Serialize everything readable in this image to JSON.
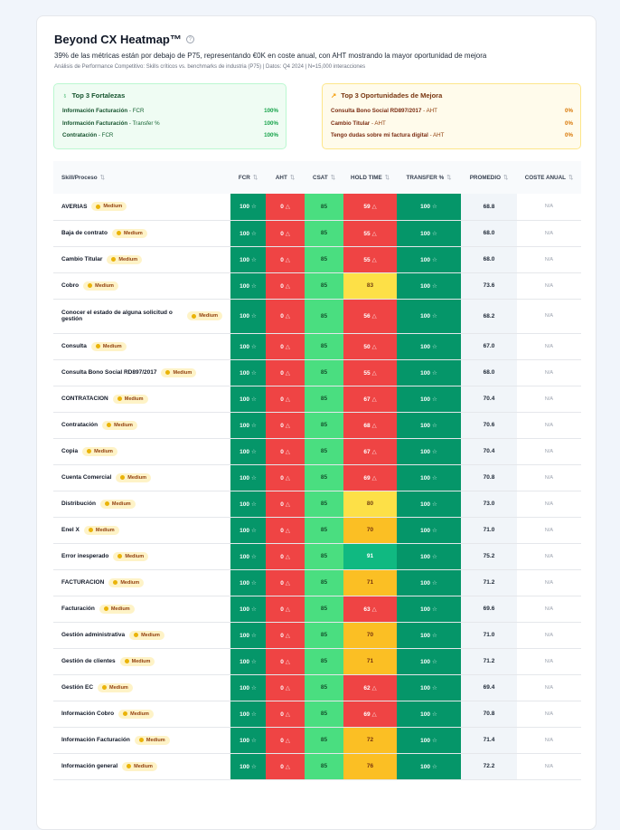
{
  "header": {
    "title": "Beyond CX Heatmap™",
    "help_icon": "question-circle-icon",
    "summary": "39% de las métricas están por debajo de P75, representando €0K en coste anual, con AHT mostrando la mayor oportunidad de mejora",
    "meta": "Análisis de Performance Competitivo: Skills críticos vs. benchmarks de industria (P75) | Datos: Q4 2024 | N=15,000 interacciones"
  },
  "strengths": {
    "title": "Top 3 Fortalezas",
    "icon": "award-icon",
    "items": [
      {
        "skill": "Información Facturación",
        "metric": " - FCR",
        "value": "100%"
      },
      {
        "skill": "Información Facturación",
        "metric": " - Transfer %",
        "value": "100%"
      },
      {
        "skill": "Contratación",
        "metric": " - FCR",
        "value": "100%"
      }
    ]
  },
  "opportunities": {
    "title": "Top 3 Oportunidades de Mejora",
    "icon": "trending-up-icon",
    "items": [
      {
        "skill": "Consulta Bono Social RD897/2017",
        "metric": " - AHT",
        "value": "0%"
      },
      {
        "skill": "Cambio Titular",
        "metric": " - AHT",
        "value": "0%"
      },
      {
        "skill": "Tengo dudas sobre mi factura digital",
        "metric": " - AHT",
        "value": "0%"
      }
    ]
  },
  "table": {
    "columns": [
      "Skill/Proceso",
      "FCR",
      "AHT",
      "CSAT",
      "HOLD TIME",
      "TRANSFER %",
      "PROMEDIO",
      "COSTE ANUAL"
    ],
    "badge": "Medium",
    "na": "N/A",
    "colors": {
      "green_dark": "#059669",
      "red": "#ef4444",
      "green_light": "#4ade80",
      "yellow": "#fde047",
      "amber": "#fbbf24",
      "green": "#10b981"
    },
    "rows": [
      {
        "skill": "AVERIAS",
        "fcr": 100,
        "aht": 0,
        "csat": 85,
        "hold": 59,
        "transfer": 100,
        "avg": "68.8"
      },
      {
        "skill": "Baja de contrato",
        "fcr": 100,
        "aht": 0,
        "csat": 85,
        "hold": 55,
        "transfer": 100,
        "avg": "68.0"
      },
      {
        "skill": "Cambio Titular",
        "fcr": 100,
        "aht": 0,
        "csat": 85,
        "hold": 55,
        "transfer": 100,
        "avg": "68.0"
      },
      {
        "skill": "Cobro",
        "fcr": 100,
        "aht": 0,
        "csat": 85,
        "hold": 83,
        "transfer": 100,
        "avg": "73.6"
      },
      {
        "skill": "Conocer el estado de alguna solicitud o gestión",
        "fcr": 100,
        "aht": 0,
        "csat": 85,
        "hold": 56,
        "transfer": 100,
        "avg": "68.2"
      },
      {
        "skill": "Consulta",
        "fcr": 100,
        "aht": 0,
        "csat": 85,
        "hold": 50,
        "transfer": 100,
        "avg": "67.0"
      },
      {
        "skill": "Consulta Bono Social RD897/2017",
        "fcr": 100,
        "aht": 0,
        "csat": 85,
        "hold": 55,
        "transfer": 100,
        "avg": "68.0"
      },
      {
        "skill": "CONTRATACION",
        "fcr": 100,
        "aht": 0,
        "csat": 85,
        "hold": 67,
        "transfer": 100,
        "avg": "70.4"
      },
      {
        "skill": "Contratación",
        "fcr": 100,
        "aht": 0,
        "csat": 85,
        "hold": 68,
        "transfer": 100,
        "avg": "70.6"
      },
      {
        "skill": "Copia",
        "fcr": 100,
        "aht": 0,
        "csat": 85,
        "hold": 67,
        "transfer": 100,
        "avg": "70.4"
      },
      {
        "skill": "Cuenta Comercial",
        "fcr": 100,
        "aht": 0,
        "csat": 85,
        "hold": 69,
        "transfer": 100,
        "avg": "70.8"
      },
      {
        "skill": "Distribución",
        "fcr": 100,
        "aht": 0,
        "csat": 85,
        "hold": 80,
        "transfer": 100,
        "avg": "73.0"
      },
      {
        "skill": "Enel X",
        "fcr": 100,
        "aht": 0,
        "csat": 85,
        "hold": 70,
        "transfer": 100,
        "avg": "71.0"
      },
      {
        "skill": "Error inesperado",
        "fcr": 100,
        "aht": 0,
        "csat": 85,
        "hold": 91,
        "transfer": 100,
        "avg": "75.2"
      },
      {
        "skill": "FACTURACION",
        "fcr": 100,
        "aht": 0,
        "csat": 85,
        "hold": 71,
        "transfer": 100,
        "avg": "71.2"
      },
      {
        "skill": "Facturación",
        "fcr": 100,
        "aht": 0,
        "csat": 85,
        "hold": 63,
        "transfer": 100,
        "avg": "69.6"
      },
      {
        "skill": "Gestión administrativa",
        "fcr": 100,
        "aht": 0,
        "csat": 85,
        "hold": 70,
        "transfer": 100,
        "avg": "71.0"
      },
      {
        "skill": "Gestión de clientes",
        "fcr": 100,
        "aht": 0,
        "csat": 85,
        "hold": 71,
        "transfer": 100,
        "avg": "71.2"
      },
      {
        "skill": "Gestión EC",
        "fcr": 100,
        "aht": 0,
        "csat": 85,
        "hold": 62,
        "transfer": 100,
        "avg": "69.4"
      },
      {
        "skill": "Información Cobro",
        "fcr": 100,
        "aht": 0,
        "csat": 85,
        "hold": 69,
        "transfer": 100,
        "avg": "70.8"
      },
      {
        "skill": "Información Facturación",
        "fcr": 100,
        "aht": 0,
        "csat": 85,
        "hold": 72,
        "transfer": 100,
        "avg": "71.4"
      },
      {
        "skill": "Información general",
        "fcr": 100,
        "aht": 0,
        "csat": 85,
        "hold": 76,
        "transfer": 100,
        "avg": "72.2"
      }
    ]
  }
}
